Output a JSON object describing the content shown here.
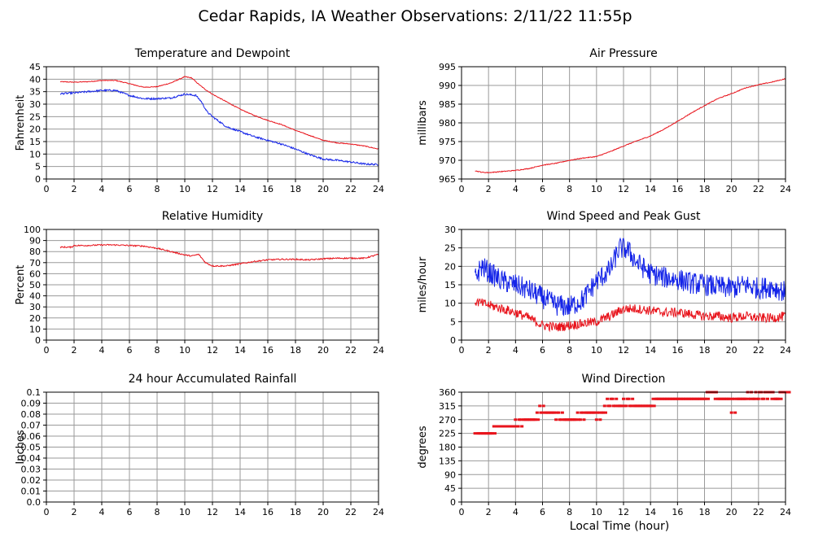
{
  "title": "Cedar Rapids, IA Weather Observations: 2/11/22 11:55p",
  "xlabel": "Local Time (hour)",
  "colors": {
    "red": "#e8141c",
    "blue": "#1424e8",
    "grid": "#9a9a9a"
  },
  "chart_data": [
    {
      "id": "temp",
      "type": "line",
      "title": "Temperature and Dewpoint",
      "ylabel": "Fahrenheit",
      "xlim": [
        0,
        24
      ],
      "ylim": [
        0,
        45
      ],
      "xticks": [
        0,
        2,
        4,
        6,
        8,
        10,
        12,
        14,
        16,
        18,
        20,
        22,
        24
      ],
      "yticks": [
        0,
        5,
        10,
        15,
        20,
        25,
        30,
        35,
        40,
        45
      ],
      "ytick_labels": [
        "0",
        "5",
        "10",
        "15",
        "20",
        "25",
        "30",
        "35",
        "40",
        "45"
      ],
      "grid": true,
      "series": [
        {
          "color": "#e8141c",
          "noise": 0.15,
          "x": [
            1,
            2,
            3,
            4,
            5,
            6,
            7,
            8,
            9,
            10,
            10.5,
            11,
            11.5,
            12,
            13,
            14,
            15,
            16,
            17,
            18,
            19,
            20,
            21,
            22,
            23,
            24
          ],
          "y": [
            39,
            38.8,
            39,
            39.5,
            39.5,
            38.2,
            36.8,
            37,
            38.5,
            41,
            40.5,
            38,
            35.8,
            34,
            31,
            28,
            25.5,
            23.5,
            21.8,
            19.5,
            17.5,
            15.5,
            14.5,
            14,
            13.2,
            12
          ]
        },
        {
          "color": "#1424e8",
          "noise": 0.35,
          "x": [
            1,
            2,
            3,
            4,
            5,
            6,
            7,
            8,
            9,
            10,
            10.8,
            11.2,
            11.6,
            12,
            13,
            14,
            15,
            16,
            17,
            18,
            19,
            20,
            21,
            22,
            23,
            24
          ],
          "y": [
            34.2,
            34.5,
            35,
            35.5,
            35.5,
            33.5,
            32.2,
            32.2,
            32.5,
            34,
            33.5,
            31,
            27,
            25,
            21,
            19,
            17,
            15.5,
            14,
            12,
            9.8,
            8,
            7.5,
            6.8,
            6,
            5.8
          ]
        }
      ]
    },
    {
      "id": "pressure",
      "type": "line",
      "title": "Air Pressure",
      "ylabel": "millibars",
      "xlim": [
        0,
        24
      ],
      "ylim": [
        965,
        995
      ],
      "xticks": [
        0,
        2,
        4,
        6,
        8,
        10,
        12,
        14,
        16,
        18,
        20,
        22,
        24
      ],
      "yticks": [
        965,
        970,
        975,
        980,
        985,
        990,
        995
      ],
      "ytick_labels": [
        "965",
        "970",
        "975",
        "980",
        "985",
        "990",
        "995"
      ],
      "grid": true,
      "series": [
        {
          "color": "#e8141c",
          "noise": 0.1,
          "x": [
            1,
            1.5,
            2,
            3,
            4,
            5,
            6,
            7,
            8,
            9,
            10,
            11,
            12,
            13,
            14,
            15,
            16,
            17,
            18,
            19,
            20,
            21,
            22,
            23,
            24
          ],
          "y": [
            967.2,
            966.8,
            966.7,
            967,
            967.3,
            967.8,
            968.7,
            969.2,
            970,
            970.6,
            971,
            972.3,
            973.8,
            975.2,
            976.5,
            978.3,
            980.4,
            982.6,
            984.6,
            986.5,
            987.8,
            989.3,
            990.2,
            990.9,
            991.8
          ]
        }
      ]
    },
    {
      "id": "rh",
      "type": "line",
      "title": "Relative Humidity",
      "ylabel": "Percent",
      "xlim": [
        0,
        24
      ],
      "ylim": [
        0,
        100
      ],
      "xticks": [
        0,
        2,
        4,
        6,
        8,
        10,
        12,
        14,
        16,
        18,
        20,
        22,
        24
      ],
      "yticks": [
        0,
        10,
        20,
        30,
        40,
        50,
        60,
        70,
        80,
        90,
        100
      ],
      "ytick_labels": [
        "0",
        "10",
        "20",
        "30",
        "40",
        "50",
        "60",
        "70",
        "80",
        "90",
        "100"
      ],
      "grid": true,
      "series": [
        {
          "color": "#e8141c",
          "noise": 0.6,
          "x": [
            1,
            1.8,
            2,
            3,
            4,
            5,
            6,
            7,
            8,
            9,
            10,
            10.5,
            11,
            11.5,
            12,
            13,
            14,
            15,
            16,
            17,
            18,
            19,
            20,
            21,
            22,
            23,
            24
          ],
          "y": [
            84,
            84,
            85.5,
            85.5,
            86,
            86,
            85.5,
            85,
            83,
            80,
            77,
            76,
            77.5,
            70,
            67,
            67,
            69,
            71,
            72.5,
            73,
            73,
            72.5,
            73.5,
            74,
            74,
            74,
            77.5
          ]
        }
      ]
    },
    {
      "id": "wind",
      "type": "line",
      "title": "Wind Speed and Peak Gust",
      "ylabel": "miles/hour",
      "xlim": [
        0,
        24
      ],
      "ylim": [
        0,
        30
      ],
      "xticks": [
        0,
        2,
        4,
        6,
        8,
        10,
        12,
        14,
        16,
        18,
        20,
        22,
        24
      ],
      "yticks": [
        0,
        5,
        10,
        15,
        20,
        25,
        30
      ],
      "ytick_labels": [
        "0",
        "5",
        "10",
        "15",
        "20",
        "25",
        "30"
      ],
      "grid": true,
      "series": [
        {
          "color": "#1424e8",
          "noise": 3.0,
          "x": [
            1,
            1.5,
            2,
            3,
            4,
            5,
            6,
            7,
            8,
            9,
            10,
            11,
            11.7,
            12.3,
            13,
            14,
            15,
            16,
            17,
            18,
            19,
            20,
            21,
            22,
            23,
            24
          ],
          "y": [
            17,
            20,
            18.5,
            16,
            15,
            13.5,
            11.5,
            9.5,
            9,
            11,
            16,
            19,
            25,
            24.5,
            21,
            18,
            17,
            16.5,
            15.5,
            15,
            14.5,
            14,
            15,
            14,
            14.5,
            13
          ]
        },
        {
          "color": "#e8141c",
          "noise": 1.3,
          "x": [
            1,
            1.5,
            2,
            3,
            4,
            5,
            6,
            7,
            8,
            9,
            10,
            11,
            12,
            13,
            14,
            15,
            16,
            17,
            18,
            19,
            20,
            21,
            22,
            23,
            24
          ],
          "y": [
            10.5,
            10,
            9.5,
            8.5,
            7.5,
            6,
            4,
            3.5,
            4,
            4.5,
            5,
            6.5,
            8.5,
            8.5,
            8,
            7.5,
            7.5,
            7,
            6.5,
            6.5,
            6,
            6.5,
            6,
            6,
            6.5
          ]
        }
      ]
    },
    {
      "id": "rain",
      "type": "line",
      "title": "24 hour Accumulated Rainfall",
      "ylabel": "Inches",
      "xlim": [
        0,
        24
      ],
      "ylim": [
        0,
        0.1
      ],
      "xticks": [
        0,
        2,
        4,
        6,
        8,
        10,
        12,
        14,
        16,
        18,
        20,
        22,
        24
      ],
      "yticks": [
        0,
        0.01,
        0.02,
        0.03,
        0.04,
        0.05,
        0.06,
        0.07,
        0.08,
        0.09,
        0.1
      ],
      "ytick_labels": [
        "0.0",
        "0.01",
        "0.02",
        "0.03",
        "0.04",
        "0.05",
        "0.06",
        "0.07",
        "0.08",
        "0.09",
        "0.1"
      ],
      "grid": true,
      "series": [
        {
          "color": "#e8141c",
          "noise": 0,
          "x": [
            1,
            24
          ],
          "y": [
            0,
            0
          ]
        }
      ]
    },
    {
      "id": "winddir",
      "type": "scatter",
      "title": "Wind Direction",
      "ylabel": "degrees",
      "xlim": [
        0,
        24
      ],
      "ylim": [
        0,
        360
      ],
      "xticks": [
        0,
        2,
        4,
        6,
        8,
        10,
        12,
        14,
        16,
        18,
        20,
        22,
        24
      ],
      "yticks": [
        0,
        45,
        90,
        135,
        180,
        225,
        270,
        315,
        360
      ],
      "ytick_labels": [
        "0",
        "45",
        "90",
        "135",
        "180",
        "225",
        "270",
        "315",
        "360"
      ],
      "grid": true,
      "series": [
        {
          "color": "#e8141c",
          "x": [
            1.0,
            1.2,
            1.4,
            1.6,
            1.8,
            2.0,
            2.2,
            2.4,
            2.6,
            2.8,
            3.0,
            3.2,
            3.4,
            3.6,
            3.8,
            4.0,
            4.2,
            4.4,
            4.6,
            4.8,
            5.0,
            5.2,
            5.4,
            5.6,
            5.8,
            6.0,
            6.2,
            6.4,
            6.6,
            6.8,
            7.0,
            7.2,
            7.4,
            7.6,
            7.8,
            8.0,
            8.2,
            8.4,
            8.6,
            8.8,
            9.0,
            9.2,
            9.4,
            9.6,
            9.8,
            10.0,
            10.2,
            10.4,
            10.6,
            10.8,
            11.0,
            11.2,
            11.4,
            11.6,
            11.8,
            12.0,
            12.2,
            12.4,
            12.6,
            12.8,
            13.0,
            13.2,
            13.4,
            13.6,
            13.8,
            14.0,
            14.2,
            14.4,
            14.6,
            14.8,
            15.0,
            15.2,
            15.4,
            15.6,
            15.8,
            16.0,
            16.2,
            16.4,
            16.6,
            16.8,
            17.0,
            17.2,
            17.4,
            17.6,
            17.8,
            18.0,
            18.2,
            18.4,
            18.6,
            18.8,
            19.0,
            19.2,
            19.4,
            19.6,
            19.8,
            20.0,
            20.2,
            20.4,
            20.6,
            20.8,
            21.0,
            21.2,
            21.4,
            21.6,
            21.8,
            22.0,
            22.2,
            22.4,
            22.6,
            22.8,
            23.0,
            23.2,
            23.4,
            23.6,
            23.8,
            24.0
          ],
          "y": [
            225,
            225,
            225,
            225,
            225,
            225,
            225,
            248,
            248,
            248,
            248,
            248,
            248,
            248,
            248,
            270,
            248,
            270,
            270,
            270,
            270,
            270,
            270,
            293,
            315,
            293,
            293,
            293,
            293,
            293,
            270,
            293,
            270,
            270,
            270,
            270,
            270,
            270,
            293,
            270,
            293,
            293,
            293,
            293,
            293,
            270,
            293,
            293,
            315,
            338,
            315,
            338,
            315,
            315,
            315,
            338,
            315,
            338,
            315,
            315,
            315,
            315,
            315,
            315,
            315,
            315,
            338,
            338,
            338,
            338,
            338,
            338,
            338,
            338,
            338,
            338,
            338,
            338,
            338,
            338,
            338,
            338,
            338,
            338,
            338,
            338,
            360,
            360,
            360,
            338,
            338,
            338,
            338,
            338,
            338,
            293,
            338,
            338,
            338,
            338,
            338,
            360,
            338,
            338,
            360,
            338,
            360,
            338,
            360,
            360,
            338,
            338,
            338,
            360,
            360,
            360
          ]
        }
      ]
    }
  ]
}
